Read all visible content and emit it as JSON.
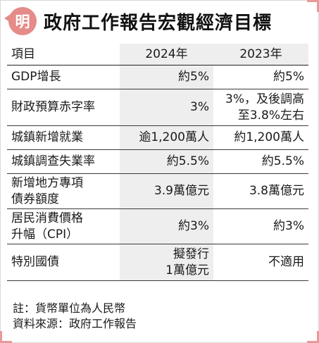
{
  "header": {
    "logo_char": "明",
    "title": "政府工作報告宏觀經濟目標"
  },
  "table": {
    "columns": [
      "項目",
      "2024年",
      "2023年"
    ],
    "rows": [
      {
        "item": [
          "GDP增長"
        ],
        "y2024": [
          "約5%"
        ],
        "y2023": [
          "約5%"
        ]
      },
      {
        "item": [
          "財政預算赤字率"
        ],
        "y2024": [
          "3%"
        ],
        "y2023": [
          "3%，及後調高",
          "至3.8%左右"
        ]
      },
      {
        "item": [
          "城鎮新增就業"
        ],
        "y2024": [
          "逾1,200萬人"
        ],
        "y2023": [
          "約1,200萬人"
        ]
      },
      {
        "item": [
          "城鎮調查失業率"
        ],
        "y2024": [
          "約5.5%"
        ],
        "y2023": [
          "約5.5%"
        ]
      },
      {
        "item": [
          "新增地方專項",
          "債券額度"
        ],
        "y2024": [
          "3.9萬億元"
        ],
        "y2023": [
          "3.8萬億元"
        ]
      },
      {
        "item": [
          "居民消費價格",
          "升幅（CPI）"
        ],
        "y2024": [
          "約3%"
        ],
        "y2023": [
          "約3%"
        ]
      },
      {
        "item": [
          "特別國債"
        ],
        "y2024": [
          "擬發行",
          "1萬億元"
        ],
        "y2023": [
          "不適用"
        ]
      }
    ]
  },
  "notes": {
    "note": "註：貨幣單位為人民幣",
    "source": "資料來源：政府工作報告"
  },
  "colors": {
    "accent": "#e58b88",
    "shade": "#eeeeee",
    "rule": "#222222"
  }
}
